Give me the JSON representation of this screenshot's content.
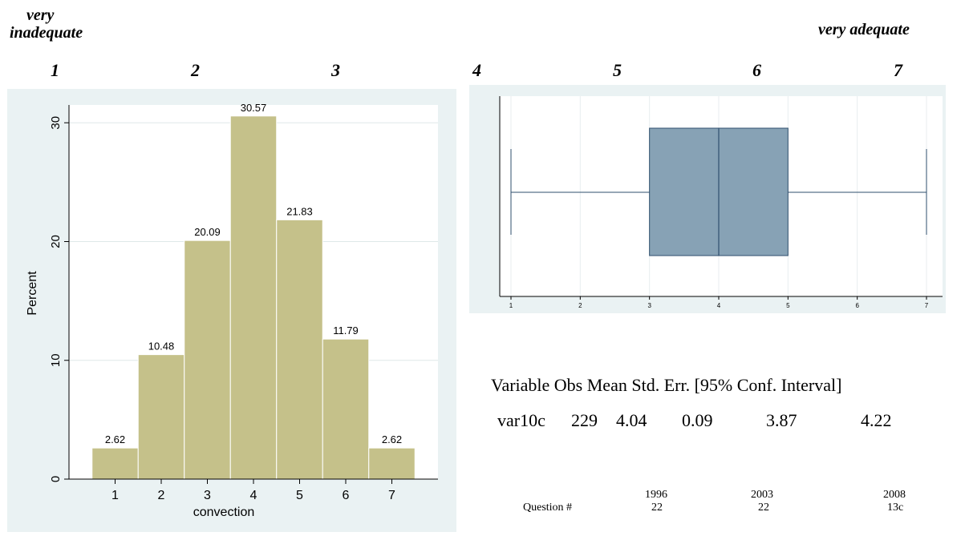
{
  "scale": {
    "left_label_line1": "very",
    "left_label_line2": "inadequate",
    "right_label": "very adequate",
    "numbers": [
      "1",
      "2",
      "3",
      "4",
      "5",
      "6",
      "7"
    ]
  },
  "stats_table": {
    "headers": [
      "Variable",
      "Obs",
      "Mean",
      "Std. Err.",
      "[95% Conf. Interval]"
    ],
    "row": {
      "variable": "var10c",
      "obs": "229",
      "mean": "4.04",
      "std_err": "0.09",
      "ci_low": "3.87",
      "ci_high": "4.22"
    }
  },
  "question_table": {
    "row_label": "Question #",
    "years": [
      "1996",
      "2003",
      "2008"
    ],
    "numbers": [
      "22",
      "22",
      "13c"
    ]
  },
  "colors": {
    "panel_bg": "#eaf2f3",
    "bar_fill": "#c5c18a",
    "box_fill": "#87a2b5",
    "box_stroke": "#2f4f6e"
  },
  "chart_data": [
    {
      "type": "bar",
      "categories": [
        "1",
        "2",
        "3",
        "4",
        "5",
        "6",
        "7"
      ],
      "values": [
        2.62,
        10.48,
        20.09,
        30.57,
        21.83,
        11.79,
        2.62
      ],
      "data_labels": [
        "2.62",
        "10.48",
        "20.09",
        "30.57",
        "21.83",
        "11.79",
        "2.62"
      ],
      "xlabel": "convection",
      "ylabel": "Percent",
      "ylim": [
        0,
        31.5
      ],
      "yticks": [
        "0",
        "10",
        "20",
        "30"
      ],
      "grid": true
    },
    {
      "type": "box",
      "min": 1,
      "q1": 3,
      "median": 4,
      "q3": 5,
      "max": 7,
      "xlim": [
        1,
        7
      ],
      "xticks": [
        "1",
        "2",
        "3",
        "4",
        "5",
        "6",
        "7"
      ],
      "grid": true
    }
  ]
}
